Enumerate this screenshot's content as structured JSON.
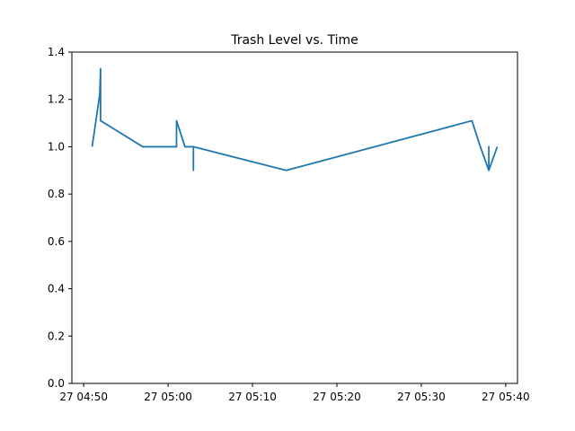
{
  "chart_data": {
    "type": "line",
    "title": "Trash Level vs. Time",
    "xlabel": "",
    "ylabel": "",
    "x_axis": {
      "kind": "time",
      "range": [
        "27 04:48:36",
        "27 05:41:24"
      ],
      "ticks": [
        {
          "t": "27 04:50:00",
          "label": "27 04:50"
        },
        {
          "t": "27 05:00:00",
          "label": "27 05:00"
        },
        {
          "t": "27 05:10:00",
          "label": "27 05:10"
        },
        {
          "t": "27 05:20:00",
          "label": "27 05:20"
        },
        {
          "t": "27 05:30:00",
          "label": "27 05:30"
        },
        {
          "t": "27 05:40:00",
          "label": "27 05:40"
        }
      ]
    },
    "y_axis": {
      "range": [
        0,
        1.4
      ],
      "ticks": [
        {
          "v": 0.0,
          "label": "0.0"
        },
        {
          "v": 0.2,
          "label": "0.2"
        },
        {
          "v": 0.4,
          "label": "0.4"
        },
        {
          "v": 0.6,
          "label": "0.6"
        },
        {
          "v": 0.8,
          "label": "0.8"
        },
        {
          "v": 1.0,
          "label": "1.0"
        },
        {
          "v": 1.2,
          "label": "1.2"
        },
        {
          "v": 1.4,
          "label": "1.4"
        }
      ]
    },
    "grid": false,
    "series": [
      {
        "color": "#1f77b4",
        "points": [
          {
            "t": "27 04:51:00",
            "y": 1.0
          },
          {
            "t": "27 04:51:54",
            "y": 1.22
          },
          {
            "t": "27 04:52:00",
            "y": 1.33
          },
          {
            "t": "27 04:52:00",
            "y": 1.11
          },
          {
            "t": "27 04:57:00",
            "y": 1.0
          },
          {
            "t": "27 05:01:00",
            "y": 1.0
          },
          {
            "t": "27 05:01:00",
            "y": 1.11
          },
          {
            "t": "27 05:02:00",
            "y": 1.0
          },
          {
            "t": "27 05:03:00",
            "y": 1.0
          },
          {
            "t": "27 05:03:00",
            "y": 0.9
          },
          {
            "t": "27 05:03:00",
            "y": 1.0
          },
          {
            "t": "27 05:14:00",
            "y": 0.9
          },
          {
            "t": "27 05:36:00",
            "y": 1.11
          },
          {
            "t": "27 05:37:00",
            "y": 1.0
          },
          {
            "t": "27 05:38:00",
            "y": 0.9
          },
          {
            "t": "27 05:38:00",
            "y": 1.0
          },
          {
            "t": "27 05:38:00",
            "y": 0.9
          },
          {
            "t": "27 05:39:00",
            "y": 1.0
          }
        ]
      }
    ]
  }
}
